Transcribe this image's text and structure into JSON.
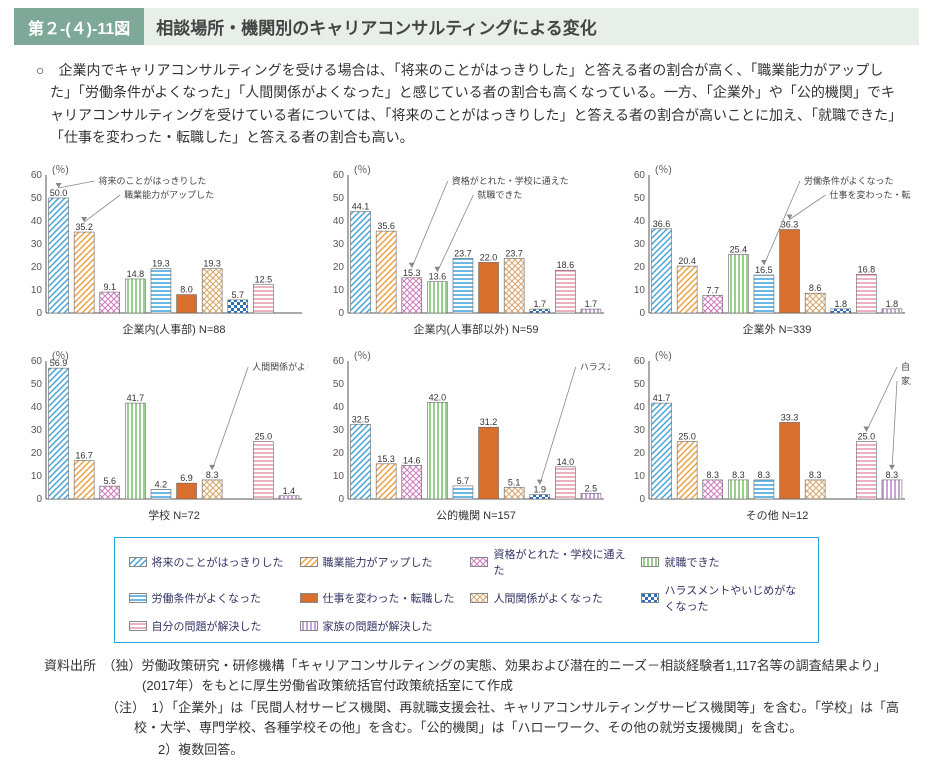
{
  "header": {
    "badge": "第２-(４)-11図",
    "title": "相談場所・機関別のキャリアコンサルティングによる変化"
  },
  "summary": "○　企業内でキャリアコンサルティングを受ける場合は、「将来のことがはっきりした」と答える者の割合が高く、「職業能力がアップした」「労働条件がよくなった」「人間関係がよくなった」と感じている者の割合も高くなっている。一方、「企業外」や「公的機関」でキャリアコンサルティングを受けている者については、「将来のことがはっきりした」と答える者の割合が高いことに加え、「就職できた」「仕事を変わった・転職した」と答える者の割合も高い。",
  "series": {
    "labels": [
      "将来のことがはっきりした",
      "職業能力がアップした",
      "資格がとれた・学校に通えた",
      "就職できた",
      "労働条件がよくなった",
      "仕事を変わった・転職した",
      "人間関係がよくなった",
      "ハラスメントやいじめがなくなった",
      "自分の問題が解決した",
      "家族の問題が解決した"
    ],
    "colors": [
      "#3fa0d8",
      "#ed9d3a",
      "#cf7fbf",
      "#7fc36f",
      "#4aa7e0",
      "#d86f2d",
      "#d6a86e",
      "#2f6fb5",
      "#e79fb0",
      "#b98dcf"
    ],
    "patterns": [
      "diag-blue",
      "diag-orange",
      "cross-pink",
      "vert-green",
      "horiz-blue",
      "solid-orange",
      "cross-tan",
      "check-blue",
      "horiz-pink",
      "vert-purple"
    ]
  },
  "axis": {
    "unit": "(％)",
    "ymax": 60,
    "ystep": 10
  },
  "charts": [
    {
      "caption": "企業内(人事部)  N=88",
      "values": [
        50.0,
        35.2,
        9.1,
        14.8,
        19.3,
        8.0,
        19.3,
        5.7,
        12.5,
        null
      ],
      "annotations": [
        {
          "text": "将来のことがはっきりした",
          "bar": 0
        },
        {
          "text": "職業能力がアップした",
          "bar": 1
        }
      ]
    },
    {
      "caption": "企業内(人事部以外)  N=59",
      "values": [
        44.1,
        35.6,
        15.3,
        13.6,
        23.7,
        22.0,
        23.7,
        1.7,
        18.6,
        1.7
      ],
      "annotations": [
        {
          "text": "資格がとれた・学校に通えた",
          "bar": 2
        },
        {
          "text": "就職できた",
          "bar": 3
        }
      ]
    },
    {
      "caption": "企業外  N=339",
      "values": [
        36.6,
        20.4,
        7.7,
        25.4,
        16.5,
        36.3,
        8.6,
        1.8,
        16.8,
        1.8
      ],
      "annotations": [
        {
          "text": "労働条件がよくなった",
          "bar": 4
        },
        {
          "text": "仕事を変わった・転職した",
          "bar": 5
        }
      ]
    },
    {
      "caption": "学校  N=72",
      "values": [
        56.9,
        16.7,
        5.6,
        41.7,
        4.2,
        6.9,
        8.3,
        null,
        25.0,
        1.4
      ],
      "annotations": [
        {
          "text": "人間関係がよくなった",
          "bar": 6
        }
      ]
    },
    {
      "caption": "公的機関  N=157",
      "values": [
        32.5,
        15.3,
        14.6,
        42.0,
        5.7,
        31.2,
        5.1,
        1.9,
        14.0,
        2.5
      ],
      "annotations": [
        {
          "text": "ハラスメントやいじめがなくなった",
          "bar": 7
        }
      ]
    },
    {
      "caption": "その他  N=12",
      "values": [
        41.7,
        25.0,
        8.3,
        8.3,
        8.3,
        33.3,
        8.3,
        null,
        25.0,
        8.3
      ],
      "annotations": [
        {
          "text": "自分の問題が解決した",
          "bar": 8
        },
        {
          "text": "家族の問題が解決した",
          "bar": 9
        }
      ]
    }
  ],
  "footnotes": {
    "source": "資料出所　（独）労働政策研究・研修機構「キャリアコンサルティングの実態、効果および潜在的ニーズ－相談経験者1,117名等の調査結果より」(2017年）をもとに厚生労働省政策統括官付政策統括室にて作成",
    "notes": [
      "（注）　1）「企業外」は「民間人材サービス機関、再就職支援会社、キャリアコンサルティングサービス機関等」を含む。「学校」は「高校・大学、専門学校、各種学校その他」を含む。「公的機関」は「ハローワーク、その他の就労支援機関」を含む。",
      "　　　　2）複数回答。"
    ]
  }
}
